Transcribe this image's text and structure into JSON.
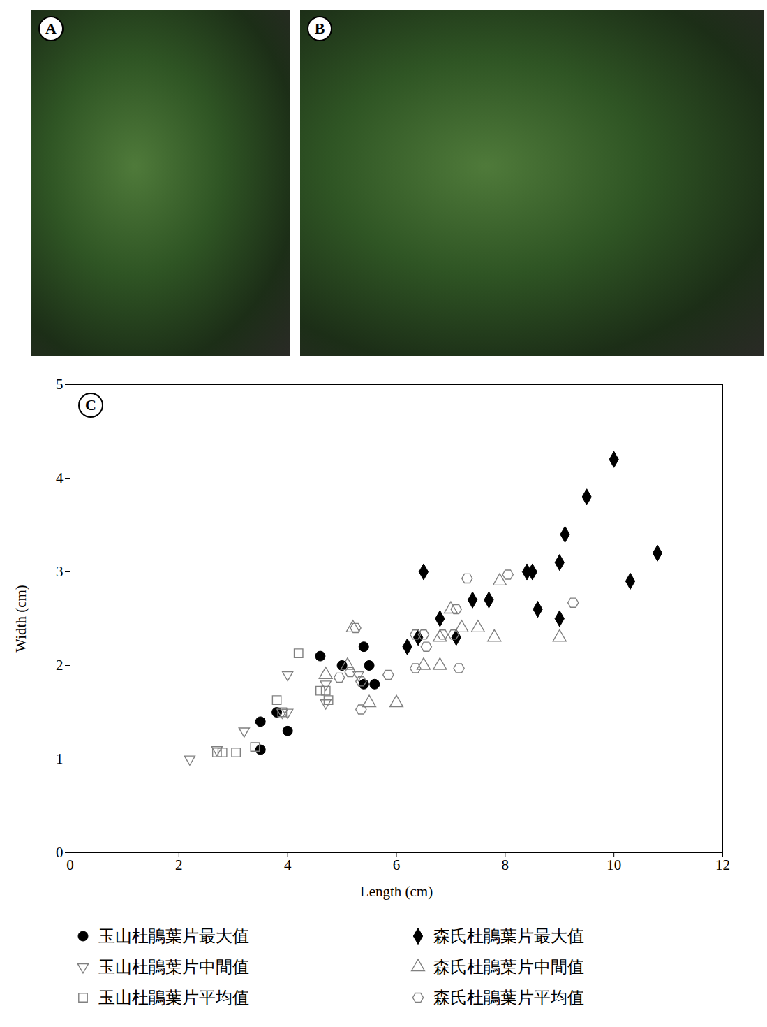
{
  "photo_panels": [
    {
      "label": "A"
    },
    {
      "label": "B"
    }
  ],
  "chart_data": {
    "type": "scatter",
    "panel_label": "C",
    "x_label": "Length (cm)",
    "y_label": "Width (cm)",
    "xlim": [
      0,
      12
    ],
    "xticks": [
      0,
      2,
      4,
      6,
      8,
      10,
      12
    ],
    "ylim": [
      0,
      5
    ],
    "yticks": [
      0,
      1,
      2,
      3,
      4,
      5
    ],
    "grid": false,
    "legend": "bottom",
    "series": [
      {
        "name": "玉山杜鵑葉片最大值",
        "color": "#000000",
        "marker": "circle",
        "x": [
          3.5,
          3.5,
          3.8,
          4.0,
          4.6,
          5.0,
          5.4,
          5.4,
          5.5,
          5.6
        ],
        "values": [
          1.1,
          1.4,
          1.5,
          1.3,
          2.1,
          2.0,
          2.2,
          1.8,
          2.0,
          1.8
        ]
      },
      {
        "name": "玉山杜鵑葉片中間值",
        "color": "#808080",
        "marker": "open-triangle-down",
        "x": [
          2.2,
          2.7,
          3.2,
          3.9,
          4.0,
          4.0,
          4.7,
          4.7,
          5.3
        ],
        "values": [
          1.0,
          1.1,
          1.3,
          1.5,
          1.9,
          1.5,
          1.6,
          1.8,
          1.9
        ]
      },
      {
        "name": "玉山杜鵑葉片平均值",
        "color": "#808080",
        "marker": "open-square",
        "x": [
          2.7,
          2.8,
          3.05,
          3.4,
          3.8,
          3.9,
          4.2,
          4.6,
          4.7,
          4.75
        ],
        "values": [
          1.07,
          1.07,
          1.07,
          1.13,
          1.63,
          1.5,
          2.13,
          1.73,
          1.73,
          1.63
        ]
      },
      {
        "name": "森氏杜鵑葉片最大值",
        "color": "#000000",
        "marker": "diamond",
        "x": [
          6.2,
          6.4,
          6.5,
          6.8,
          7.1,
          7.4,
          7.7,
          8.4,
          8.5,
          8.6,
          9.0,
          9.0,
          9.1,
          9.5,
          10.0,
          10.3,
          10.8
        ],
        "values": [
          2.2,
          2.3,
          3.0,
          2.5,
          2.3,
          2.7,
          2.7,
          3.0,
          3.0,
          2.6,
          3.1,
          2.5,
          3.4,
          3.8,
          4.2,
          2.9,
          3.2
        ]
      },
      {
        "name": "森氏杜鵑葉片中間值",
        "color": "#808080",
        "marker": "open-triangle-up",
        "x": [
          4.7,
          5.1,
          5.2,
          5.5,
          6.0,
          6.5,
          6.8,
          6.8,
          7.0,
          7.2,
          7.5,
          7.8,
          7.9,
          9.0
        ],
        "values": [
          1.9,
          2.0,
          2.4,
          1.6,
          1.6,
          2.0,
          2.0,
          2.3,
          2.6,
          2.4,
          2.4,
          2.3,
          2.9,
          2.3
        ]
      },
      {
        "name": "森氏杜鵑葉片平均值",
        "color": "#808080",
        "marker": "open-hexagon",
        "x": [
          4.95,
          5.15,
          5.25,
          5.35,
          5.35,
          5.85,
          6.35,
          6.35,
          6.5,
          6.55,
          6.85,
          7.05,
          7.1,
          7.15,
          7.3,
          8.05,
          9.25
        ],
        "values": [
          1.87,
          1.93,
          2.4,
          1.53,
          1.83,
          1.9,
          1.97,
          2.33,
          2.33,
          2.2,
          2.33,
          2.33,
          2.6,
          1.97,
          2.93,
          2.97,
          2.67
        ]
      }
    ]
  }
}
